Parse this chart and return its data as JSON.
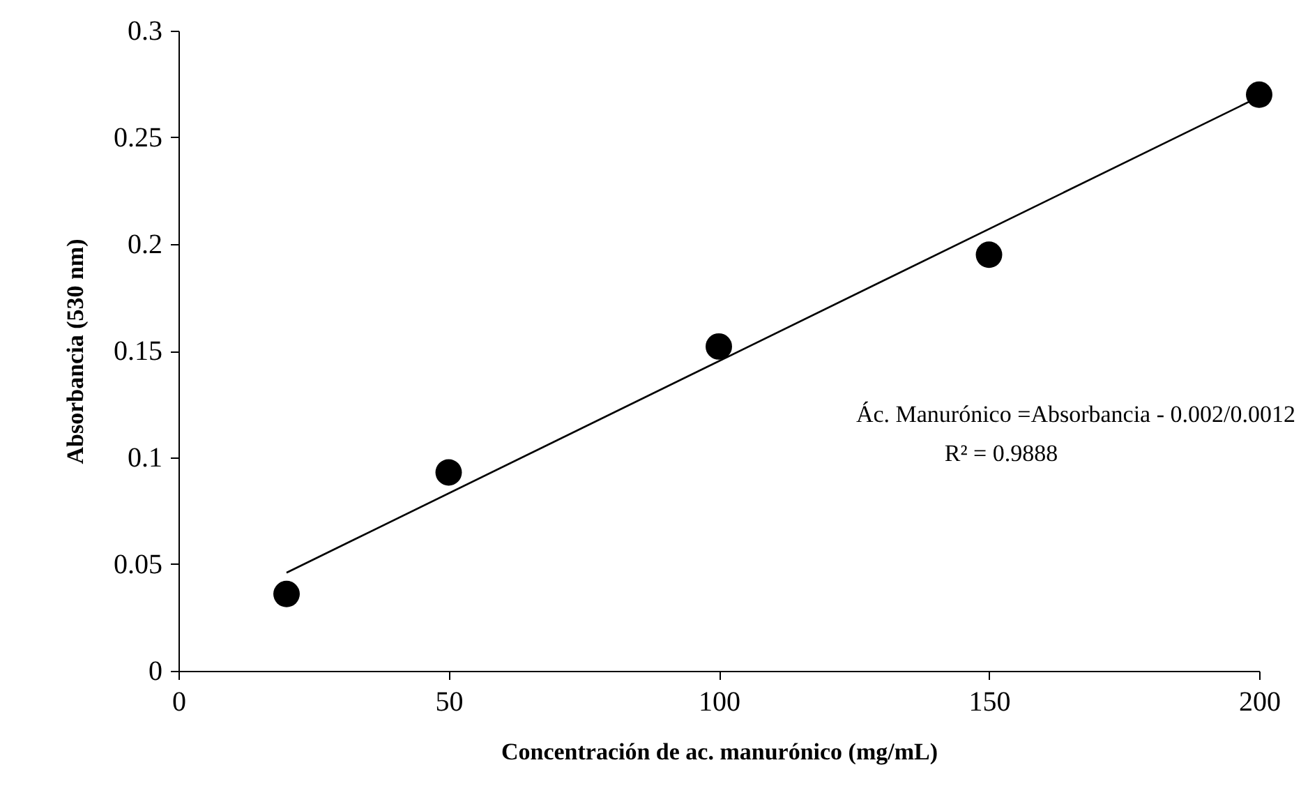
{
  "chart_data": {
    "type": "scatter",
    "xlabel": "Concentración de ac. manurónico (mg/mL)",
    "ylabel": "Absorbancia  (530 nm)",
    "x": [
      20,
      50,
      100,
      150,
      200
    ],
    "series": [
      {
        "color": "#000000",
        "marker": "circle",
        "values": [
          0.036,
          0.093,
          0.152,
          0.195,
          0.27
        ]
      },
      {
        "type": "line",
        "color": "#000000",
        "x": [
          20,
          200
        ],
        "values": [
          0.046,
          0.269
        ]
      }
    ],
    "xlim": [
      0,
      200
    ],
    "xticks": [
      0,
      50,
      100,
      150,
      200
    ],
    "ylim": [
      0,
      0.3
    ],
    "yticks": [
      0,
      0.05,
      0.1,
      0.15,
      0.2,
      0.25,
      0.3
    ],
    "annotations": [
      "Ác. Manurónico  =Absorbancia - 0.002/0.0012",
      "R² = 0.9888"
    ],
    "grid": false,
    "line_style": "solid"
  }
}
